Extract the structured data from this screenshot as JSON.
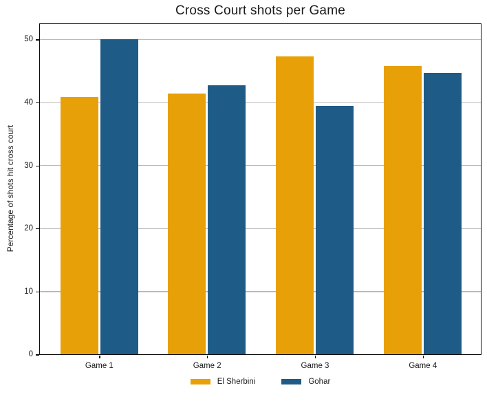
{
  "chart_data": {
    "type": "bar",
    "title": "Cross Court shots per Game",
    "xlabel": "",
    "ylabel": "Percentage of shots hit cross court",
    "categories": [
      "Game 1",
      "Game 2",
      "Game 3",
      "Game 4"
    ],
    "series": [
      {
        "name": "El Sherbini",
        "color": "#E8A008",
        "values": [
          40.8,
          41.4,
          47.3,
          45.7
        ]
      },
      {
        "name": "Gohar",
        "color": "#1E5B87",
        "values": [
          50.0,
          42.7,
          39.4,
          44.6
        ]
      }
    ],
    "ylim": [
      0,
      52.4
    ],
    "yticks": [
      0,
      10,
      20,
      30,
      40,
      50
    ],
    "grid": "horizontal",
    "legend_position": "bottom-center",
    "colors": {
      "grid": "#b9b9b9",
      "spine": "#0d0d0d",
      "text": "#1a1a1a",
      "background": "#ffffff"
    }
  }
}
